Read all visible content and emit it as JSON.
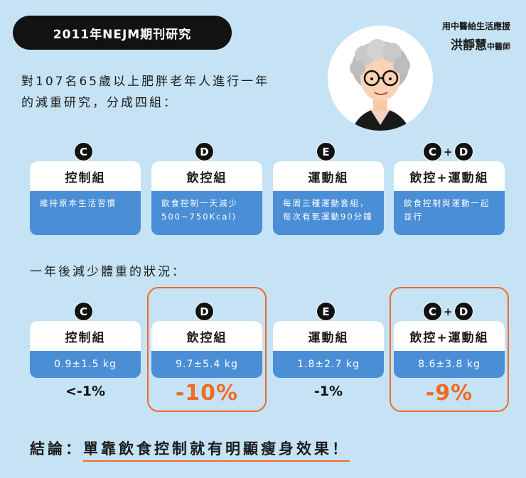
{
  "title": "2011年NEJM期刊研究",
  "author": {
    "subtitle": "用中醫給生活應援",
    "name": "洪靜慧",
    "suffix": "中醫師"
  },
  "intro": {
    "line1": "對107名65歲以上肥胖老年人進行一年",
    "line2": "的減重研究，分成四組："
  },
  "groups": [
    {
      "badge": "C",
      "name": "控制組",
      "desc": "維持原本生活習慣",
      "result": "0.9±1.5 kg",
      "percent": "<-1%"
    },
    {
      "badge": "D",
      "name": "飲控組",
      "desc": "飲食控制一天減少500~750Kcal)",
      "result": "9.7±5.4 kg",
      "percent": "-10%"
    },
    {
      "badge": "E",
      "name": "運動組",
      "desc": "每周三種運動套組，每次有氧運動90分鐘",
      "result": "1.8±2.7 kg",
      "percent": "-1%"
    },
    {
      "badge_left": "C",
      "badge_plus": "+",
      "badge_right": "D",
      "name": "飲控+運動組",
      "desc": "飲食控制與運動一起並行",
      "result": "8.6±3.8 kg",
      "percent": "-9%"
    }
  ],
  "section_title": "一年後減少體重的狀況：",
  "conclusion": {
    "label": "結論：",
    "text": "單靠飲食控制就有明顯瘦身效果！"
  },
  "colors": {
    "background": "#c5e3f5",
    "card_blue": "#4a8ed6",
    "accent_orange": "#f06a25",
    "pill_black": "#121212"
  }
}
